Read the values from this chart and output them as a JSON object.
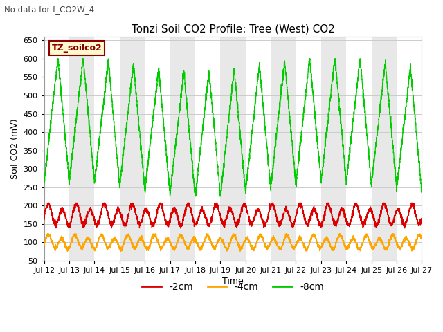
{
  "title": "Tonzi Soil CO2 Profile: Tree (West) CO2",
  "subtitle": "No data for f_CO2W_4",
  "ylabel": "Soil CO2 (mV)",
  "xlabel": "Time",
  "legend_box_label": "TZ_soilco2",
  "ylim": [
    50,
    660
  ],
  "yticks": [
    50,
    100,
    150,
    200,
    250,
    300,
    350,
    400,
    450,
    500,
    550,
    600,
    650
  ],
  "series": [
    {
      "label": "-2cm",
      "color": "#dd0000"
    },
    {
      "label": "-4cm",
      "color": "#ffa500"
    },
    {
      "label": "-8cm",
      "color": "#00cc00"
    }
  ],
  "background_color": "#ffffff",
  "grid_color": "#cccccc",
  "stripe_color": "#e8e8e8",
  "n_days": 15,
  "start_day": 12,
  "green_peak": 585,
  "green_trough": 245,
  "red_peak": 197,
  "red_trough": 148,
  "orange_peak": 115,
  "orange_trough": 83
}
